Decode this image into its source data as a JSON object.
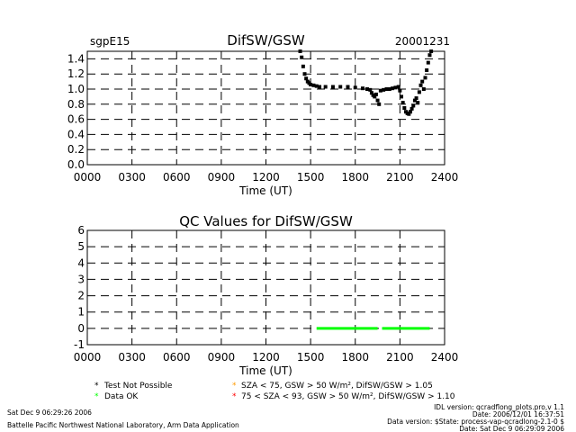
{
  "colors": {
    "data_ok": "#00ff00",
    "test_not_possible": "#000000",
    "sza75": "#ff9900",
    "sza93": "#ff0000",
    "axes": "#000000"
  },
  "top_left_label": "sgpE15",
  "date_label": "20001231",
  "chart_data": [
    {
      "type": "scatter",
      "title": "DifSW/GSW",
      "xlabel": "Time (UT)",
      "ylabel": "",
      "xlim": [
        0,
        2400
      ],
      "ylim": [
        0.0,
        1.5
      ],
      "xticks": [
        "0000",
        "0300",
        "0600",
        "0900",
        "1200",
        "1500",
        "1800",
        "2100",
        "2400"
      ],
      "yticks": [
        "0.0",
        "0.2",
        "0.4",
        "0.6",
        "0.8",
        "1.0",
        "1.2",
        "1.4"
      ],
      "grid": true,
      "series": [
        {
          "points": [
            [
              1430,
              1.5
            ],
            [
              1440,
              1.42
            ],
            [
              1450,
              1.3
            ],
            [
              1460,
              1.2
            ],
            [
              1470,
              1.14
            ],
            [
              1480,
              1.1
            ],
            [
              1490,
              1.08
            ],
            [
              1500,
              1.06
            ],
            [
              1520,
              1.05
            ],
            [
              1540,
              1.04
            ],
            [
              1560,
              1.03
            ],
            [
              1600,
              1.03
            ],
            [
              1650,
              1.03
            ],
            [
              1700,
              1.03
            ],
            [
              1750,
              1.03
            ],
            [
              1800,
              1.02
            ],
            [
              1850,
              1.01
            ],
            [
              1880,
              1.0
            ],
            [
              1900,
              0.99
            ],
            [
              1910,
              0.95
            ],
            [
              1920,
              0.92
            ],
            [
              1930,
              0.9
            ],
            [
              1940,
              0.93
            ],
            [
              1950,
              0.85
            ],
            [
              1960,
              0.8
            ],
            [
              1970,
              0.98
            ],
            [
              1990,
              0.99
            ],
            [
              2010,
              1.0
            ],
            [
              2030,
              1.0
            ],
            [
              2050,
              1.01
            ],
            [
              2070,
              1.02
            ],
            [
              2090,
              1.03
            ],
            [
              2100,
              0.98
            ],
            [
              2110,
              0.9
            ],
            [
              2120,
              0.82
            ],
            [
              2130,
              0.75
            ],
            [
              2140,
              0.7
            ],
            [
              2150,
              0.68
            ],
            [
              2160,
              0.67
            ],
            [
              2170,
              0.7
            ],
            [
              2180,
              0.74
            ],
            [
              2190,
              0.78
            ],
            [
              2200,
              0.85
            ],
            [
              2210,
              0.88
            ],
            [
              2220,
              0.82
            ],
            [
              2230,
              0.96
            ],
            [
              2240,
              1.05
            ],
            [
              2250,
              1.1
            ],
            [
              2260,
              1.0
            ],
            [
              2270,
              1.15
            ],
            [
              2280,
              1.25
            ],
            [
              2290,
              1.35
            ],
            [
              2300,
              1.45
            ],
            [
              2310,
              1.5
            ]
          ]
        }
      ]
    },
    {
      "type": "scatter",
      "title": "QC Values for DifSW/GSW",
      "xlabel": "Time (UT)",
      "ylabel": "",
      "xlim": [
        0,
        2400
      ],
      "ylim": [
        -1,
        6
      ],
      "xticks": [
        "0000",
        "0300",
        "0600",
        "0900",
        "1200",
        "1500",
        "1800",
        "2100",
        "2400"
      ],
      "yticks": [
        "-1",
        "0",
        "1",
        "2",
        "3",
        "4",
        "5",
        "6"
      ],
      "grid": true,
      "series": [
        {
          "color": "#00ff00",
          "x_ranges": [
            [
              1540,
              1950
            ],
            [
              1980,
              2300
            ]
          ],
          "y": 0
        },
        {
          "color": "#000000",
          "x_ranges": [
            [
              1880,
              2200
            ]
          ],
          "y": -1
        }
      ]
    }
  ],
  "legend": {
    "items": [
      {
        "symbol": "*",
        "text": "Test Not Possible"
      },
      {
        "symbol": "*",
        "text": "Data OK"
      },
      {
        "symbol": "*",
        "text": "SZA < 75, GSW > 50 W/m², DifSW/GSW > 1.05"
      },
      {
        "symbol": "*",
        "text": "75 < SZA < 93, GSW > 50 W/m², DifSW/GSW > 1.10"
      }
    ]
  },
  "footer": {
    "date_left": "Sat Dec  9 06:29:26 2006",
    "lab": "Battelle Pacific Northwest National Laboratory, Arm Data Application",
    "idl_version": "IDL version: qcradflong_plots.pro,v 1.1",
    "date_right": "Date: 2006/12/01 16:37:51",
    "data_version": "Data version: $State: process-vap-qcradlong-2.1-0 $",
    "date_right2": "Date: Sat Dec  9 06:29:09 2006"
  }
}
